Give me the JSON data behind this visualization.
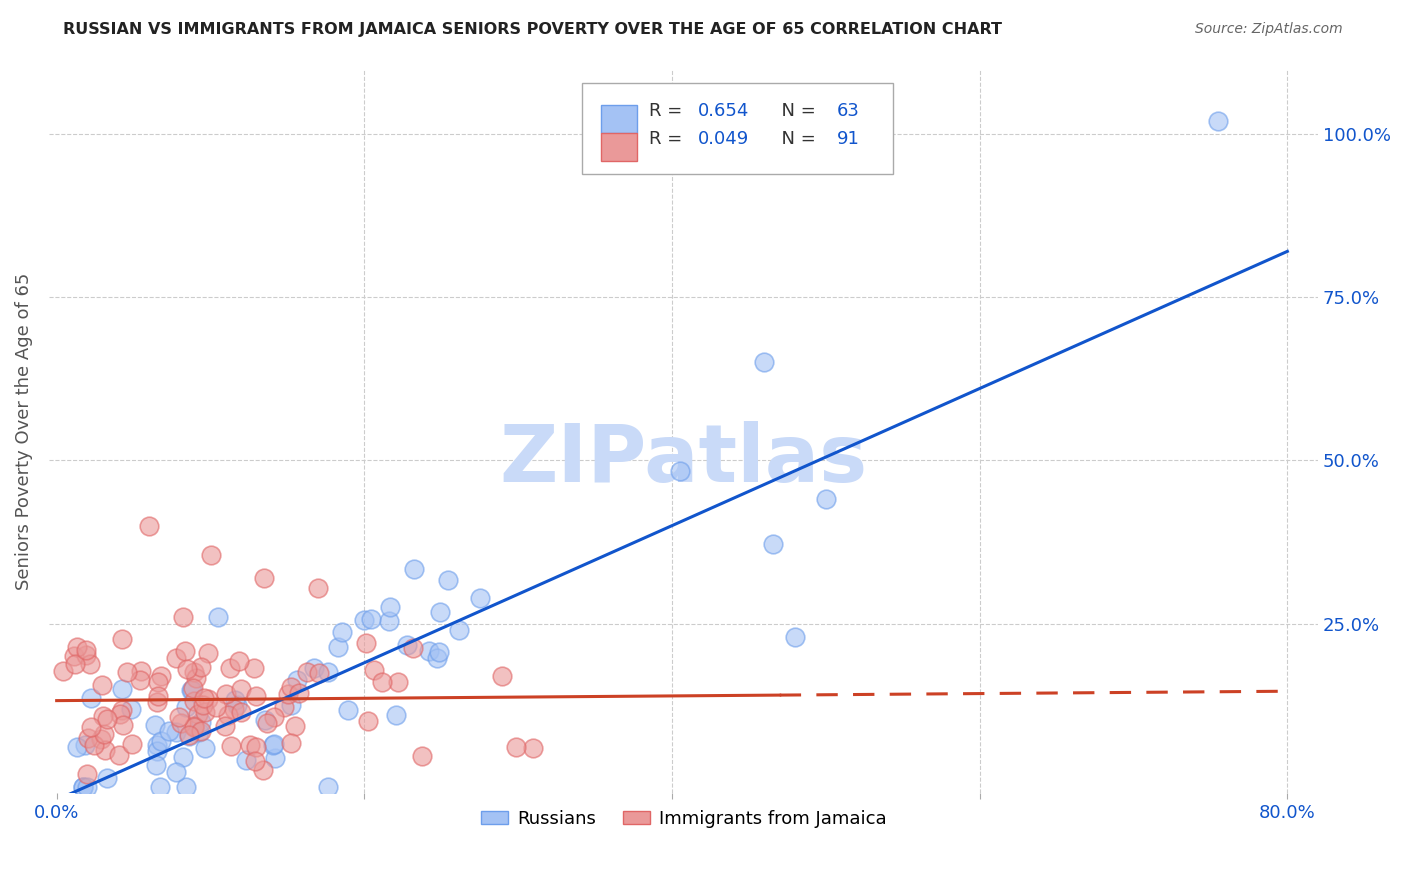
{
  "title": "RUSSIAN VS IMMIGRANTS FROM JAMAICA SENIORS POVERTY OVER THE AGE OF 65 CORRELATION CHART",
  "source": "Source: ZipAtlas.com",
  "ylabel": "Seniors Poverty Over the Age of 65",
  "russian_color": "#a4c2f4",
  "russian_edge_color": "#6d9eeb",
  "jamaica_color": "#ea9999",
  "jamaica_edge_color": "#e06666",
  "russian_line_color": "#1155cc",
  "jamaica_line_color": "#cc4125",
  "watermark": "ZIPatlas",
  "watermark_color": "#c9daf8",
  "legend_R_russian": "0.654",
  "legend_N_russian": "63",
  "legend_R_jamaica": "0.049",
  "legend_N_jamaica": "91",
  "legend_label_russian": "Russians",
  "legend_label_jamaica": "Immigrants from Jamaica",
  "tick_color": "#1155cc",
  "ylabel_color": "#555555",
  "title_color": "#222222",
  "source_color": "#666666",
  "grid_color": "#cccccc"
}
